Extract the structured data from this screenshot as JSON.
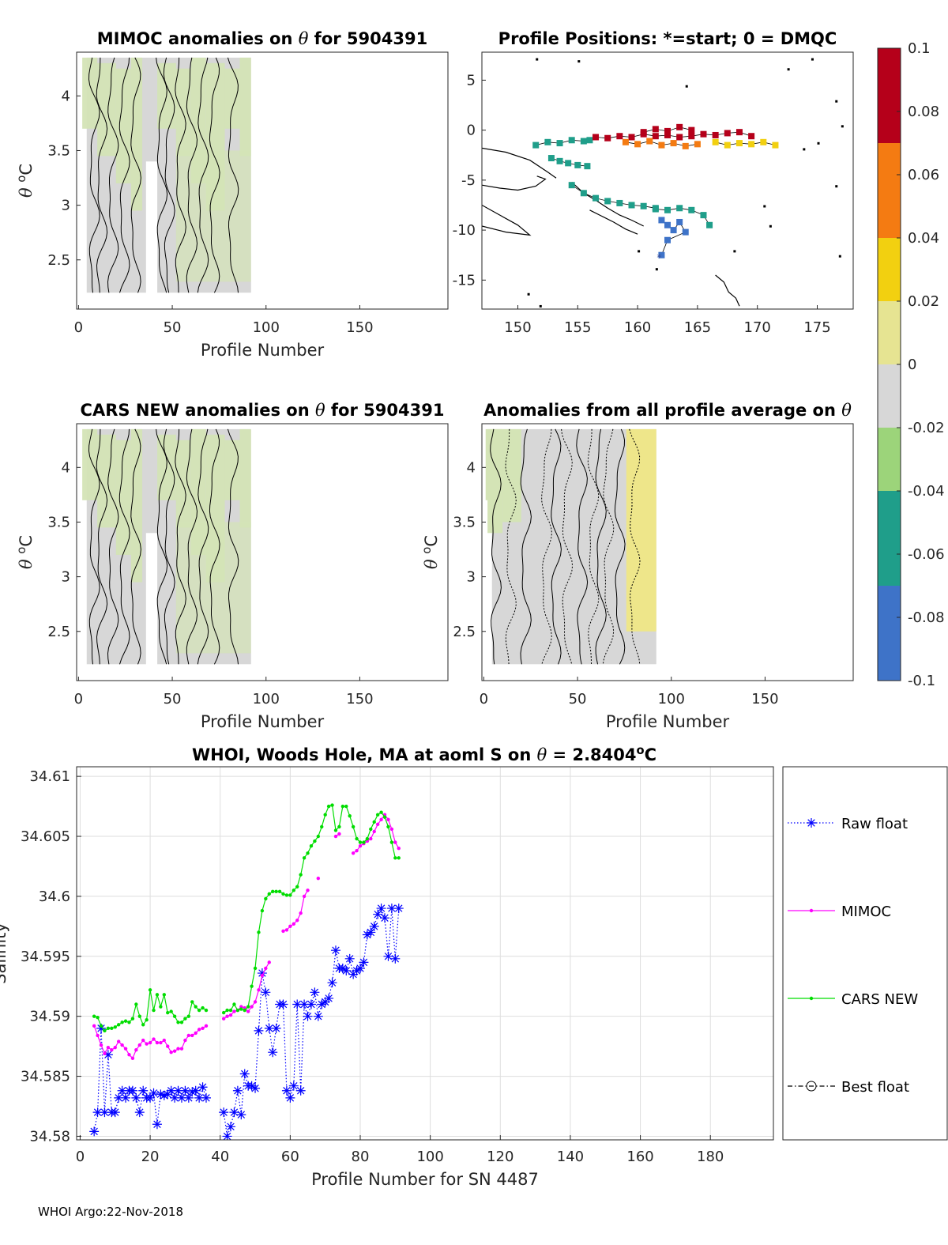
{
  "footer": "WHOI Argo:22-Nov-2018",
  "colors": {
    "raw": "#0000ff",
    "mimoc": "#ff00ff",
    "cars": "#00dd00",
    "best": "#000000",
    "land": "#000000"
  },
  "chart_data": [
    {
      "id": "mimoc",
      "type": "heatmap",
      "title_parts": [
        "MIMOC anomalies on ",
        "θ",
        "  for 5904391"
      ],
      "xlabel": "Profile Number",
      "ylabel_parts": [
        "θ ",
        "o",
        "C"
      ],
      "xlim": [
        -1,
        197
      ],
      "ylim": [
        2.05,
        4.4
      ],
      "xticks": [
        0,
        50,
        100,
        150
      ],
      "yticks": [
        2.5,
        3,
        3.5,
        4
      ],
      "ytick_labels": [
        "2.5",
        "3",
        "3.5",
        "4"
      ],
      "fill_color": "#d4e4b6",
      "gray_color": "#d7d7d7",
      "data_x_range": [
        1,
        92
      ],
      "gap": [
        36,
        42
      ]
    },
    {
      "id": "positions",
      "type": "scatter",
      "title": "Profile Positions: *=start; 0 = DMQC",
      "xlim": [
        147,
        178
      ],
      "ylim": [
        -17.9,
        7.8
      ],
      "xticks": [
        150,
        155,
        160,
        165,
        170,
        175
      ],
      "yticks": [
        5,
        0,
        -5,
        -10,
        -15
      ],
      "ytick_labels": [
        "5",
        "0",
        "-5",
        "-10",
        "-15"
      ],
      "track_segments": [
        {
          "lon": [
            151.5,
            152.5,
            153.5,
            154.5,
            155.5,
            156.0
          ],
          "lat": [
            -1.5,
            -1.2,
            -1.3,
            -1.0,
            -1.1,
            -1.0
          ],
          "value": -0.045
        },
        {
          "lon": [
            152.8,
            153.5,
            154.2,
            155.0,
            155.8
          ],
          "lat": [
            -2.8,
            -3.1,
            -3.3,
            -3.5,
            -3.6
          ],
          "value": -0.04
        },
        {
          "lon": [
            156.5,
            157.5,
            158.5,
            159.5,
            160.5,
            161.5,
            162.5,
            163.5,
            164.5,
            165.5,
            166.5,
            167.5,
            168.5,
            169.5
          ],
          "lat": [
            -0.7,
            -0.8,
            -0.6,
            -0.7,
            -0.4,
            -0.6,
            -0.5,
            -0.7,
            -0.6,
            -0.4,
            -0.5,
            -0.3,
            -0.2,
            -0.6
          ],
          "value": 0.08
        },
        {
          "lon": [
            159.0,
            160.0,
            161.0,
            162.0,
            163.0,
            164.0,
            165.0
          ],
          "lat": [
            -1.2,
            -1.4,
            -1.1,
            -1.5,
            -1.3,
            -1.6,
            -1.4
          ],
          "value": 0.06
        },
        {
          "lon": [
            166.5,
            167.5,
            168.5,
            169.5,
            170.5,
            171.5
          ],
          "lat": [
            -1.2,
            -1.5,
            -1.3,
            -1.4,
            -1.2,
            -1.5
          ],
          "value": 0.03
        },
        {
          "lon": [
            160.5,
            161.5,
            162.5,
            163.5,
            164.5
          ],
          "lat": [
            -0.2,
            0.1,
            -0.1,
            0.3,
            0.0
          ],
          "value": 0.095
        },
        {
          "lon": [
            154.5,
            155.5,
            156.5,
            157.5,
            158.5,
            159.5,
            160.5,
            161.5
          ],
          "lat": [
            -5.5,
            -6.3,
            -6.8,
            -7.1,
            -7.3,
            -7.5,
            -7.6,
            -7.8
          ],
          "value": -0.05
        },
        {
          "lon": [
            161.5,
            162.5,
            163.5,
            164.5,
            165.5,
            166.0
          ],
          "lat": [
            -7.9,
            -8.0,
            -7.8,
            -8.0,
            -8.5,
            -9.5
          ],
          "value": -0.06
        },
        {
          "lon": [
            162.0,
            162.5,
            163.0,
            163.5,
            164.0,
            162.5,
            162.0
          ],
          "lat": [
            -9.0,
            -9.5,
            -10.0,
            -9.2,
            -10.2,
            -11.0,
            -12.5
          ],
          "value": -0.09
        }
      ],
      "start_marker": {
        "lon": 161.8,
        "lat": -12.6
      }
    },
    {
      "id": "cars",
      "type": "heatmap",
      "title_parts": [
        "CARS NEW anomalies on ",
        "θ",
        " for 5904391"
      ],
      "xlabel": "Profile Number",
      "ylabel_parts": [
        "θ ",
        "o",
        "C"
      ],
      "xlim": [
        -1,
        197
      ],
      "ylim": [
        2.05,
        4.4
      ],
      "xticks": [
        0,
        50,
        100,
        150
      ],
      "yticks": [
        2.5,
        3,
        3.5,
        4
      ],
      "ytick_labels": [
        "2.5",
        "3",
        "3.5",
        "4"
      ],
      "fill_color": "#d4e4b6",
      "gray_color": "#d7d7d7",
      "data_x_range": [
        1,
        92
      ],
      "gap": [
        36,
        42
      ]
    },
    {
      "id": "average",
      "type": "heatmap",
      "title_parts": [
        "Anomalies from all profile average on ",
        "θ"
      ],
      "xlabel": "Profile Number",
      "ylabel_parts": [
        "θ ",
        "o",
        "C"
      ],
      "xlim": [
        -1,
        197
      ],
      "ylim": [
        2.05,
        4.4
      ],
      "xticks": [
        0,
        50,
        100,
        150
      ],
      "yticks": [
        2.5,
        3,
        3.5,
        4
      ],
      "ytick_labels": [
        "2.5",
        "3",
        "3.5",
        "4"
      ],
      "fill_color": "#d4e4b6",
      "gray_color": "#d7d7d7",
      "yellow_color": "#eee68a",
      "data_x_range": [
        1,
        92
      ],
      "yellow_x_range": [
        76,
        92
      ]
    },
    {
      "id": "colorbar",
      "type": "colorbar",
      "range": [
        -0.1,
        0.1
      ],
      "ticks": [
        0.1,
        0.08,
        0.06,
        0.04,
        0.02,
        0,
        -0.02,
        -0.04,
        -0.06,
        -0.08,
        -0.1
      ],
      "tick_labels": [
        "0.1",
        "0.08",
        "0.06",
        "0.04",
        "0.02",
        "0",
        "-0.02",
        "-0.04",
        "-0.06",
        "-0.08",
        "-0.1"
      ]
    },
    {
      "id": "salinity",
      "type": "line",
      "title_parts": [
        "WHOI, Woods Hole, MA at aoml S on ",
        "θ",
        " = 2.8404",
        "o",
        "C"
      ],
      "xlabel": "Profile Number for SN 4487",
      "ylabel": "Salinity",
      "xlim": [
        -1,
        198
      ],
      "ylim": [
        34.5797,
        34.6108
      ],
      "xticks": [
        0,
        20,
        40,
        60,
        80,
        100,
        120,
        140,
        160,
        180
      ],
      "yticks": [
        34.58,
        34.585,
        34.59,
        34.595,
        34.6,
        34.605,
        34.61
      ],
      "ytick_labels": [
        "34.58",
        "34.585",
        "34.59",
        "34.595",
        "34.6",
        "34.605",
        "34.61"
      ],
      "legend": [
        "Raw float",
        "MIMOC",
        "CARS NEW",
        "Best float"
      ],
      "series": [
        {
          "name": "Raw float",
          "x": [
            4,
            5,
            6,
            7,
            8,
            9,
            10,
            11,
            12,
            13,
            14,
            15,
            16,
            17,
            18,
            19,
            20,
            21,
            22,
            23,
            24,
            25,
            26,
            27,
            28,
            29,
            30,
            31,
            32,
            33,
            34,
            35,
            36,
            41,
            42,
            43,
            44,
            45,
            46,
            47,
            48,
            49,
            50,
            51,
            52,
            53,
            54,
            55,
            56,
            57,
            58,
            59,
            60,
            61,
            62,
            63,
            64,
            65,
            66,
            67,
            68,
            69,
            70,
            71,
            72,
            73,
            74,
            75,
            76,
            77,
            78,
            79,
            80,
            81,
            82,
            83,
            84,
            85,
            86,
            87,
            88,
            89,
            90,
            91
          ],
          "y": [
            34.5804,
            34.582,
            34.589,
            34.582,
            34.5868,
            34.582,
            34.582,
            34.5832,
            34.5838,
            34.5832,
            34.5838,
            34.5838,
            34.5832,
            34.582,
            34.5838,
            34.5832,
            34.5832,
            34.5836,
            34.581,
            34.5835,
            34.5834,
            34.5835,
            34.5838,
            34.5832,
            34.5838,
            34.5832,
            34.5838,
            34.5832,
            34.5837,
            34.5838,
            34.5832,
            34.5841,
            34.5832,
            34.582,
            34.58,
            34.5808,
            34.582,
            34.5838,
            34.5818,
            34.5852,
            34.5842,
            34.5842,
            34.584,
            34.5888,
            34.5936,
            34.592,
            34.589,
            34.587,
            34.589,
            34.591,
            34.591,
            34.5838,
            34.5832,
            34.5842,
            34.591,
            34.5838,
            34.591,
            34.59,
            34.591,
            34.592,
            34.59,
            34.591,
            34.5912,
            34.5915,
            34.5928,
            34.5955,
            34.594,
            34.594,
            34.5938,
            34.5948,
            34.5935,
            34.5938,
            34.594,
            34.5945,
            34.5968,
            34.597,
            34.5975,
            34.5985,
            34.599,
            34.5982,
            34.595,
            34.599,
            34.5948,
            34.599
          ]
        },
        {
          "name": "MIMOC",
          "x": [
            4,
            5,
            6,
            7,
            8,
            9,
            10,
            11,
            12,
            13,
            14,
            15,
            16,
            17,
            18,
            19,
            20,
            21,
            22,
            23,
            24,
            25,
            26,
            27,
            28,
            29,
            30,
            31,
            32,
            33,
            34,
            35,
            36,
            41,
            42,
            43,
            44,
            45,
            46,
            47,
            48,
            49,
            50,
            51,
            52,
            53,
            54,
            58,
            59,
            60,
            61,
            62,
            63,
            64,
            65,
            68,
            73,
            74,
            78,
            79,
            80,
            81,
            82,
            83,
            84,
            85,
            86,
            87,
            88,
            89,
            90,
            91
          ],
          "y": [
            34.5892,
            34.5884,
            34.5876,
            34.5869,
            34.5874,
            34.5872,
            34.5874,
            34.5879,
            34.5876,
            34.5873,
            34.5868,
            34.5865,
            34.5872,
            34.5876,
            34.588,
            34.5877,
            34.5878,
            34.5881,
            34.5878,
            34.5878,
            34.588,
            34.5875,
            34.587,
            34.5871,
            34.5873,
            34.5873,
            34.588,
            34.5884,
            34.5884,
            34.5886,
            34.5889,
            34.589,
            34.5892,
            34.5898,
            34.59,
            34.5901,
            34.5904,
            34.5905,
            34.5908,
            34.5907,
            34.5904,
            34.5908,
            34.5912,
            34.5922,
            34.5934,
            34.594,
            34.5945,
            34.5971,
            34.5972,
            34.5975,
            34.5977,
            34.598,
            34.5986,
            34.6,
            34.6005,
            34.6015,
            34.605,
            34.6052,
            34.6036,
            34.6038,
            34.6042,
            34.6044,
            34.6046,
            34.6048,
            34.6054,
            34.606,
            34.6064,
            34.6068,
            34.6064,
            34.6056,
            34.6045,
            34.604
          ]
        },
        {
          "name": "CARS NEW",
          "x": [
            4,
            5,
            6,
            7,
            8,
            9,
            10,
            11,
            12,
            13,
            14,
            15,
            16,
            17,
            18,
            19,
            20,
            21,
            22,
            23,
            24,
            25,
            26,
            27,
            28,
            29,
            30,
            31,
            32,
            33,
            34,
            35,
            36,
            41,
            42,
            43,
            44,
            45,
            46,
            47,
            48,
            49,
            50,
            51,
            52,
            53,
            54,
            55,
            56,
            57,
            58,
            59,
            60,
            61,
            62,
            63,
            64,
            65,
            66,
            67,
            68,
            69,
            70,
            71,
            72,
            73,
            74,
            75,
            76,
            77,
            78,
            79,
            80,
            81,
            82,
            83,
            84,
            85,
            86,
            87,
            88,
            89,
            90,
            91
          ],
          "y": [
            34.59,
            34.5899,
            34.5892,
            34.5888,
            34.589,
            34.589,
            34.5891,
            34.5893,
            34.5895,
            34.5896,
            34.5895,
            34.5898,
            34.591,
            34.59,
            34.5893,
            34.5897,
            34.5922,
            34.5905,
            34.5918,
            34.5908,
            34.5918,
            34.5903,
            34.5904,
            34.59,
            34.5895,
            34.5895,
            34.5898,
            34.59,
            34.5912,
            34.5908,
            34.5905,
            34.5907,
            34.5905,
            34.5903,
            34.5905,
            34.5905,
            34.591,
            34.5905,
            34.5906,
            34.5905,
            34.5908,
            34.5925,
            34.594,
            34.597,
            34.5988,
            34.5998,
            34.6002,
            34.6004,
            34.6004,
            34.6004,
            34.6002,
            34.6001,
            34.6001,
            34.6005,
            34.6008,
            34.6018,
            34.6032,
            34.6036,
            34.6042,
            34.6046,
            34.605,
            34.6058,
            34.6068,
            34.6075,
            34.6076,
            34.6055,
            34.6058,
            34.6075,
            34.6075,
            34.6067,
            34.6058,
            34.6048,
            34.6045,
            34.6045,
            34.6048,
            34.6056,
            34.6062,
            34.6068,
            34.607,
            34.6066,
            34.6058,
            34.6045,
            34.6032,
            34.6032
          ]
        },
        {
          "name": "Best float",
          "x": [],
          "y": []
        }
      ]
    }
  ]
}
